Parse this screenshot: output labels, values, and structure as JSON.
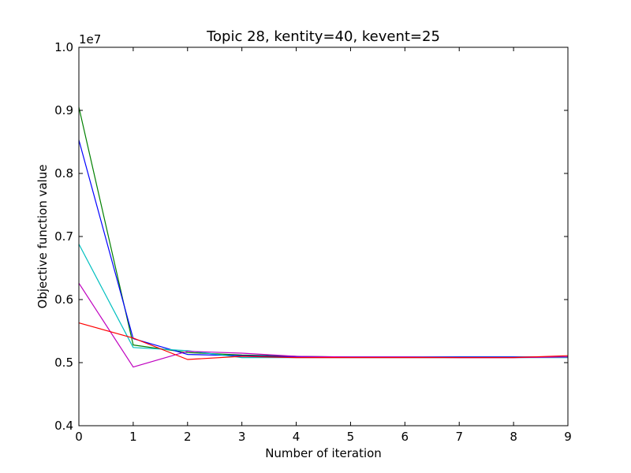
{
  "chart_data": {
    "type": "line",
    "title": "Topic 28, kentity=40, kevent=25",
    "xlabel": "Number of iteration",
    "ylabel": "Objective function value",
    "y_offset_label": "1e7",
    "x": [
      0,
      1,
      2,
      3,
      4,
      5,
      6,
      7,
      8,
      9
    ],
    "xlim": [
      0,
      9
    ],
    "ylim": [
      0.4,
      1.0
    ],
    "x_ticks": [
      "0",
      "1",
      "2",
      "3",
      "4",
      "5",
      "6",
      "7",
      "8",
      "9"
    ],
    "y_ticks": [
      "0.4",
      "0.5",
      "0.6",
      "0.7",
      "0.8",
      "0.9",
      "1.0"
    ],
    "y_tick_values": [
      0.4,
      0.5,
      0.6,
      0.7,
      0.8,
      0.9,
      1.0
    ],
    "grid": false,
    "legend": "none",
    "series": [
      {
        "color": "#008000",
        "values": [
          0.905,
          0.528,
          0.516,
          0.512,
          0.51,
          0.509,
          0.509,
          0.509,
          0.509,
          0.509
        ]
      },
      {
        "color": "#0000ff",
        "values": [
          0.853,
          0.538,
          0.513,
          0.511,
          0.509,
          0.509,
          0.509,
          0.509,
          0.509,
          0.509
        ]
      },
      {
        "color": "#00bfbf",
        "values": [
          0.688,
          0.524,
          0.519,
          0.508,
          0.508,
          0.508,
          0.508,
          0.508,
          0.508,
          0.508
        ]
      },
      {
        "color": "#bf00bf",
        "values": [
          0.626,
          0.493,
          0.518,
          0.515,
          0.51,
          0.509,
          0.509,
          0.508,
          0.508,
          0.509
        ]
      },
      {
        "color": "#ff0000",
        "values": [
          0.563,
          0.539,
          0.505,
          0.51,
          0.508,
          0.508,
          0.508,
          0.508,
          0.508,
          0.511
        ]
      }
    ]
  }
}
